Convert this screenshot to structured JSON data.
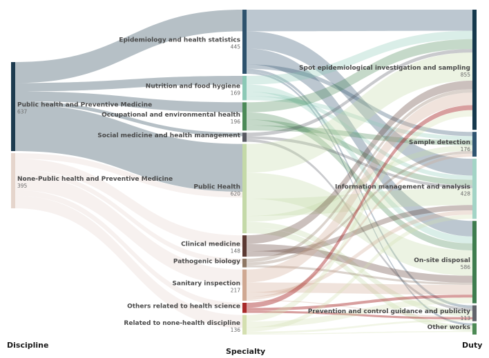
{
  "chart_data": {
    "type": "sankey",
    "title": "",
    "columns": [
      {
        "name": "Discipline",
        "nodes": [
          {
            "id": "ph",
            "label": "Public health and Preventive Medicine",
            "value": 637,
            "color": "#1d3b4f"
          },
          {
            "id": "nph",
            "label": "None-Public health and Preventive Medicine",
            "value": 395,
            "color": "#e5d5cc"
          }
        ]
      },
      {
        "name": "Specialty",
        "nodes": [
          {
            "id": "epi",
            "label": "Epidemiology and health statistics",
            "value": 445,
            "color": "#2e526d"
          },
          {
            "id": "nut",
            "label": "Nutrition and food hygiene",
            "value": 169,
            "color": "#8cc9b6"
          },
          {
            "id": "occ",
            "label": "Occupational and environmental health",
            "value": 196,
            "color": "#4c8a58"
          },
          {
            "id": "soc",
            "label": "Social medicine and health management",
            "value": 64,
            "color": "#585a62"
          },
          {
            "id": "pub",
            "label": "Public Health",
            "value": 620,
            "color": "#c4d9a8"
          },
          {
            "id": "cli",
            "label": "Clinical medicine",
            "value": 148,
            "color": "#5c3a33"
          },
          {
            "id": "pat",
            "label": "Pathogenic biology",
            "value": 60,
            "color": "#8e7763"
          },
          {
            "id": "san",
            "label": "Sanitary inspection",
            "value": 217,
            "color": "#cfa892"
          },
          {
            "id": "oth",
            "label": "Others related to health science",
            "value": 70,
            "color": "#a82a2a"
          },
          {
            "id": "non",
            "label": "Related to none-health discipline",
            "value": 136,
            "color": "#d4dfb0"
          }
        ]
      },
      {
        "name": "Duty",
        "nodes": [
          {
            "id": "spot",
            "label": "Spot epidemiological investigation and sampling",
            "value": 855,
            "color": "#16394d"
          },
          {
            "id": "samp",
            "label": "Sample detection",
            "value": 176,
            "color": "#2f5470"
          },
          {
            "id": "info",
            "label": "Information management and analysis",
            "value": 428,
            "color": "#a3d4c6"
          },
          {
            "id": "onsite",
            "label": "On-site disposal",
            "value": 586,
            "color": "#3f7d4f"
          },
          {
            "id": "prev",
            "label": "Prevention and control guidance and publicity",
            "value": 113,
            "color": "#62646b"
          },
          {
            "id": "other",
            "label": "Other works",
            "value": 80,
            "color": "#4d8a55"
          }
        ]
      }
    ],
    "visible_value_labels": [
      "637",
      "395",
      "445",
      "169",
      "196",
      "620",
      "148",
      "217",
      "136",
      "855",
      "176",
      "428",
      "586",
      "113"
    ],
    "links_left": [
      {
        "source": "ph",
        "target": "epi",
        "value": 150
      },
      {
        "source": "ph",
        "target": "nut",
        "value": 60
      },
      {
        "source": "ph",
        "target": "occ",
        "value": 70
      },
      {
        "source": "ph",
        "target": "soc",
        "value": 25
      },
      {
        "source": "ph",
        "target": "pub",
        "value": 332
      },
      {
        "source": "nph",
        "target": "pub",
        "value": 40
      },
      {
        "source": "nph",
        "target": "cli",
        "value": 80
      },
      {
        "source": "nph",
        "target": "pat",
        "value": 35
      },
      {
        "source": "nph",
        "target": "san",
        "value": 110
      },
      {
        "source": "nph",
        "target": "oth",
        "value": 40
      },
      {
        "source": "nph",
        "target": "non",
        "value": 90
      }
    ],
    "links_right": [
      {
        "source": "epi",
        "target": "spot",
        "value": 150
      },
      {
        "source": "epi",
        "target": "info",
        "value": 120
      },
      {
        "source": "epi",
        "target": "onsite",
        "value": 110
      },
      {
        "source": "epi",
        "target": "samp",
        "value": 30
      },
      {
        "source": "epi",
        "target": "prev",
        "value": 20
      },
      {
        "source": "epi",
        "target": "other",
        "value": 15
      },
      {
        "source": "nut",
        "target": "spot",
        "value": 60
      },
      {
        "source": "nut",
        "target": "onsite",
        "value": 50
      },
      {
        "source": "nut",
        "target": "info",
        "value": 30
      },
      {
        "source": "nut",
        "target": "samp",
        "value": 29
      },
      {
        "source": "occ",
        "target": "spot",
        "value": 70
      },
      {
        "source": "occ",
        "target": "onsite",
        "value": 50
      },
      {
        "source": "occ",
        "target": "info",
        "value": 40
      },
      {
        "source": "occ",
        "target": "samp",
        "value": 36
      },
      {
        "source": "soc",
        "target": "spot",
        "value": 25
      },
      {
        "source": "soc",
        "target": "info",
        "value": 20
      },
      {
        "source": "soc",
        "target": "prev",
        "value": 19
      },
      {
        "source": "pub",
        "target": "spot",
        "value": 200
      },
      {
        "source": "pub",
        "target": "onsite",
        "value": 180
      },
      {
        "source": "pub",
        "target": "info",
        "value": 120
      },
      {
        "source": "pub",
        "target": "samp",
        "value": 40
      },
      {
        "source": "pub",
        "target": "prev",
        "value": 40
      },
      {
        "source": "pub",
        "target": "other",
        "value": 40
      },
      {
        "source": "cli",
        "target": "spot",
        "value": 60
      },
      {
        "source": "cli",
        "target": "onsite",
        "value": 50
      },
      {
        "source": "cli",
        "target": "info",
        "value": 38
      },
      {
        "source": "pat",
        "target": "spot",
        "value": 25
      },
      {
        "source": "pat",
        "target": "samp",
        "value": 20
      },
      {
        "source": "pat",
        "target": "onsite",
        "value": 15
      },
      {
        "source": "san",
        "target": "spot",
        "value": 90
      },
      {
        "source": "san",
        "target": "onsite",
        "value": 70
      },
      {
        "source": "san",
        "target": "info",
        "value": 30
      },
      {
        "source": "san",
        "target": "samp",
        "value": 21
      },
      {
        "source": "san",
        "target": "prev",
        "value": 6
      },
      {
        "source": "oth",
        "target": "spot",
        "value": 35
      },
      {
        "source": "oth",
        "target": "onsite",
        "value": 20
      },
      {
        "source": "oth",
        "target": "prev",
        "value": 15
      },
      {
        "source": "non",
        "target": "spot",
        "value": 45
      },
      {
        "source": "non",
        "target": "onsite",
        "value": 41
      },
      {
        "source": "non",
        "target": "info",
        "value": 30
      },
      {
        "source": "non",
        "target": "prev",
        "value": 13
      },
      {
        "source": "non",
        "target": "other",
        "value": 7
      }
    ]
  }
}
